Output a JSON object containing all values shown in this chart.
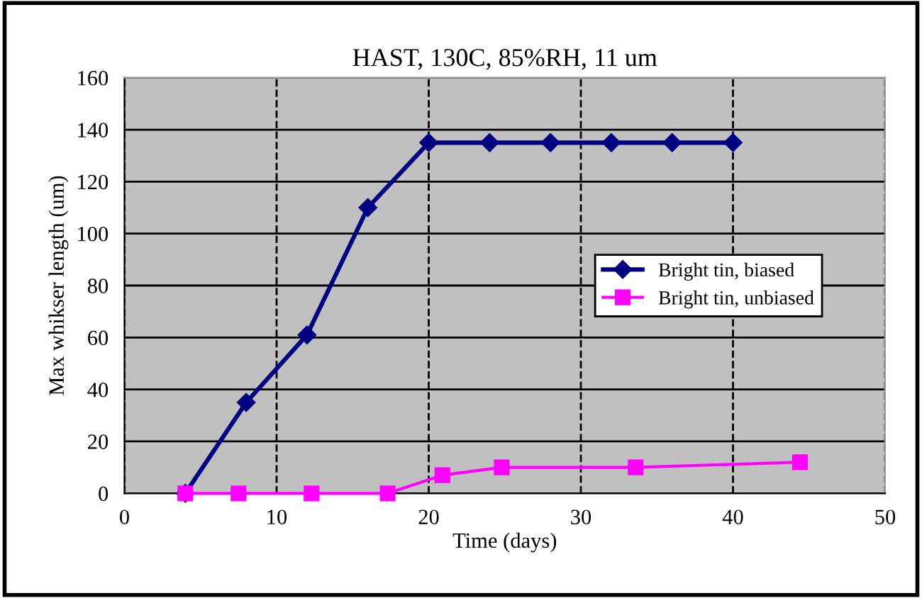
{
  "chart_data": {
    "type": "line",
    "title": "HAST, 130C, 85%RH, 11 um",
    "xlabel": "Time (days)",
    "ylabel": "Max whikser length (um)",
    "xlim": [
      0,
      50
    ],
    "xticks": [
      0,
      10,
      20,
      30,
      40,
      50
    ],
    "ylim": [
      0,
      160
    ],
    "yticks": [
      0,
      20,
      40,
      60,
      80,
      100,
      120,
      140,
      160
    ],
    "grid": true,
    "legend": "right",
    "series": [
      {
        "name": "Bright tin, biased",
        "color": "#000080",
        "marker": "diamond",
        "x": [
          4,
          8,
          12,
          16,
          20,
          24,
          28,
          32,
          36,
          40
        ],
        "values": [
          0,
          35,
          61,
          110,
          135,
          135,
          135,
          135,
          135,
          135
        ]
      },
      {
        "name": "Bright tin, unbiased",
        "color": "#ff00ff",
        "marker": "square",
        "x": [
          4,
          7.5,
          12.3,
          17.3,
          20.9,
          24.8,
          33.6,
          44.4
        ],
        "values": [
          0,
          0,
          0,
          0,
          7,
          10,
          10,
          12
        ]
      }
    ]
  }
}
